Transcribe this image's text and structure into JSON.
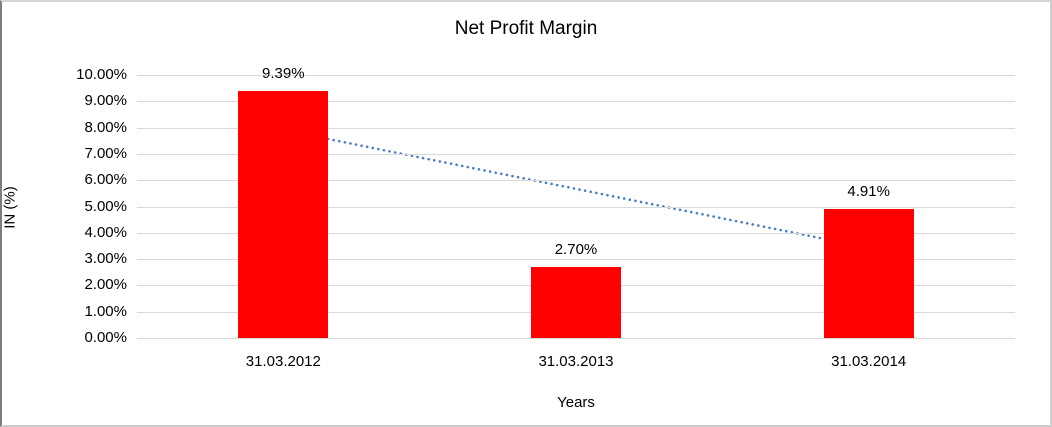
{
  "chart_data": {
    "type": "bar",
    "title": "Net Profit Margin",
    "xlabel": "Years",
    "ylabel": "IN (%)",
    "categories": [
      "31.03.2012",
      "31.03.2013",
      "31.03.2014"
    ],
    "values": [
      9.39,
      2.7,
      4.91
    ],
    "data_labels": [
      "9.39%",
      "2.70%",
      "4.91%"
    ],
    "ylim": [
      0,
      10
    ],
    "ytick_labels": [
      "0.00%",
      "1.00%",
      "2.00%",
      "3.00%",
      "4.00%",
      "5.00%",
      "6.00%",
      "7.00%",
      "8.00%",
      "9.00%",
      "10.00%"
    ],
    "grid": "horizontal",
    "legend": "none",
    "bar_color": "#ff0000",
    "gridline_color": "#d9d9d9",
    "trendline": {
      "type": "linear",
      "style": "dotted",
      "color": "#4a7ebb",
      "start_value": 7.91,
      "end_value": 3.43
    }
  }
}
